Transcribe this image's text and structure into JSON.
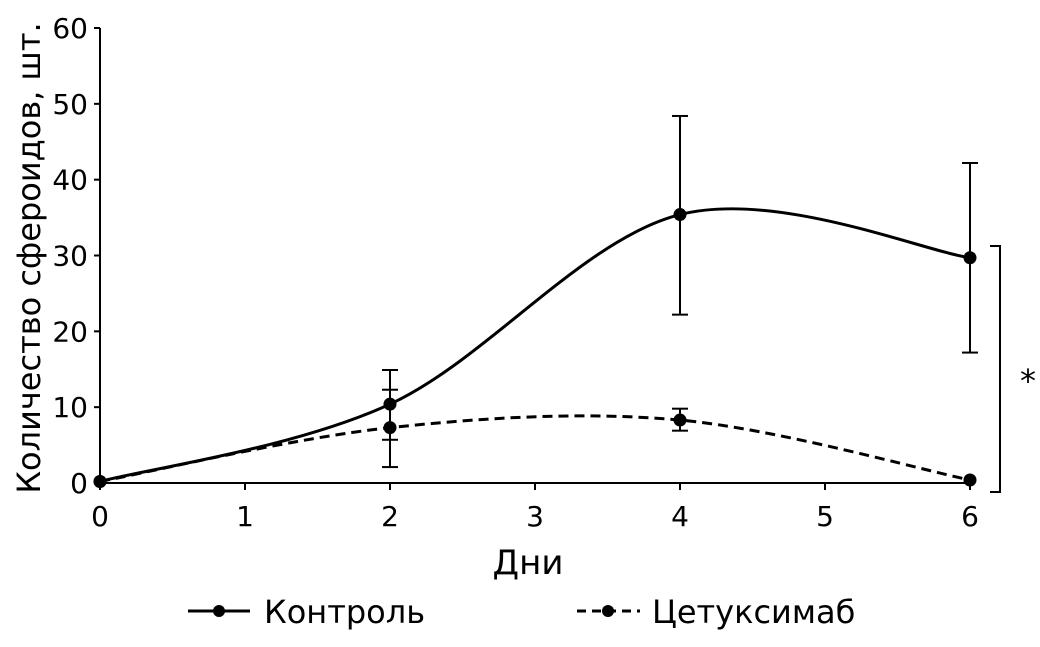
{
  "chart_data": {
    "type": "line",
    "title": "",
    "xlabel": "Дни",
    "ylabel": "Количество сфероидов, шт.",
    "xlim": [
      0,
      6
    ],
    "ylim": [
      0,
      60
    ],
    "x_ticks": [
      "0",
      "1",
      "2",
      "3",
      "4",
      "5",
      "6"
    ],
    "y_ticks": [
      "0",
      "10",
      "20",
      "30",
      "40",
      "50",
      "60"
    ],
    "grid": false,
    "legend_position": "bottom",
    "series": [
      {
        "name": "Контроль",
        "style": "solid",
        "x": [
          0,
          2,
          4,
          6
        ],
        "values": [
          0.2,
          10.4,
          35.4,
          29.7
        ],
        "err_low": [
          null,
          2.1,
          22.2,
          17.2
        ],
        "err_high": [
          null,
          14.9,
          48.4,
          42.2
        ]
      },
      {
        "name": "Цетуксимаб",
        "style": "dashed",
        "x": [
          0,
          2,
          4,
          6
        ],
        "values": [
          0.2,
          7.3,
          8.3,
          0.4
        ],
        "err_low": [
          null,
          5.7,
          6.9,
          null
        ],
        "err_high": [
          null,
          12.3,
          9.8,
          null
        ]
      }
    ],
    "annotation": "*"
  }
}
